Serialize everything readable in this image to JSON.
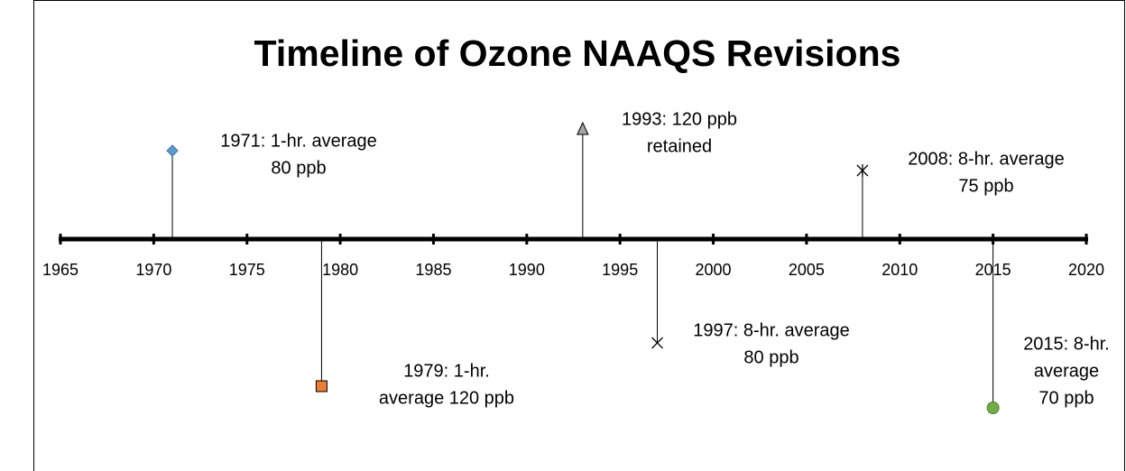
{
  "chart_data": {
    "type": "timeline",
    "title": "Timeline of Ozone NAAQS Revisions",
    "xlim": [
      1965,
      2020
    ],
    "xticks": [
      1965,
      1970,
      1975,
      1980,
      1985,
      1990,
      1995,
      2000,
      2005,
      2010,
      2015,
      2020
    ],
    "events": [
      {
        "year": 1971,
        "label": [
          "1971: 1-hr. average",
          "80 ppb"
        ],
        "marker": "diamond",
        "color": "#5b9bd5"
      },
      {
        "year": 1979,
        "label": [
          "1979:  1-hr.",
          "average 120 ppb"
        ],
        "marker": "square",
        "color": "#ed7d31"
      },
      {
        "year": 1993,
        "label": [
          "1993: 120 ppb",
          "retained"
        ],
        "marker": "triangle",
        "color": "#a5a5a5"
      },
      {
        "year": 1997,
        "label": [
          "1997: 8-hr. average",
          "80 ppb"
        ],
        "marker": "x",
        "color": "#000000"
      },
      {
        "year": 2008,
        "label": [
          "2008: 8-hr. average",
          "75 ppb"
        ],
        "marker": "star",
        "color": "#000000"
      },
      {
        "year": 2015,
        "label": [
          "2015: 8-hr.",
          "average",
          "70 ppb"
        ],
        "marker": "circle",
        "color": "#70ad47"
      }
    ]
  }
}
